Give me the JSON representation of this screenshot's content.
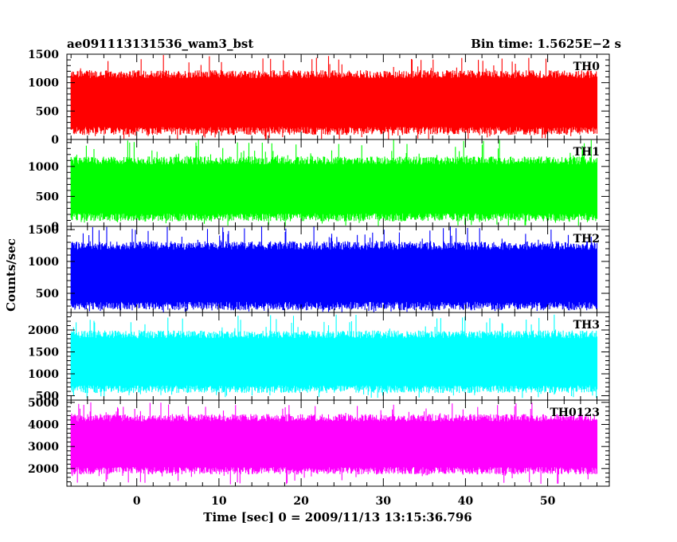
{
  "header": {
    "title": "ae091113131536_wam3_bst",
    "bin_time": "Bin time: 1.5625E−2 s"
  },
  "chart_data": {
    "type": "line",
    "xlabel": "Time [sec] 0 = 2009/11/13 13:15:36.796",
    "ylabel": "Counts/sec",
    "xlim": [
      -8.5,
      57.5
    ],
    "data_x_range": [
      -8,
      56
    ],
    "x_ticks": [
      0,
      10,
      20,
      30,
      40,
      50
    ],
    "x_tick_labels": [
      "0",
      "10",
      "20",
      "30",
      "40",
      "50"
    ],
    "grid": false,
    "panels": [
      {
        "label": "TH0",
        "color": "#ff0000",
        "ylim": [
          0,
          1500
        ],
        "y_ticks": [
          0,
          500,
          1000,
          1500
        ],
        "y_tick_labels": [
          "0",
          "500",
          "1000",
          "1500"
        ],
        "typical_low": 150,
        "typical_high": 1150,
        "extremes": [
          0,
          1500
        ]
      },
      {
        "label": "TH1",
        "color": "#00ff00",
        "ylim": [
          0,
          1450
        ],
        "y_ticks": [
          0,
          500,
          1000
        ],
        "y_tick_labels": [
          "0",
          "500",
          "1000"
        ],
        "typical_low": 150,
        "typical_high": 1100,
        "extremes": [
          0,
          1450
        ]
      },
      {
        "label": "TH2",
        "color": "#0000ff",
        "ylim": [
          200,
          1550
        ],
        "y_ticks": [
          500,
          1000,
          1500
        ],
        "y_tick_labels": [
          "500",
          "1000",
          "1500"
        ],
        "typical_low": 300,
        "typical_high": 1250,
        "extremes": [
          200,
          1550
        ]
      },
      {
        "label": "TH3",
        "color": "#00ffff",
        "ylim": [
          400,
          2400
        ],
        "y_ticks": [
          500,
          1000,
          1500,
          2000
        ],
        "y_tick_labels": [
          "500",
          "1000",
          "1500",
          "2000"
        ],
        "typical_low": 650,
        "typical_high": 1900,
        "extremes": [
          450,
          2350
        ]
      },
      {
        "label": "TH0123",
        "color": "#ff00ff",
        "ylim": [
          1200,
          5100
        ],
        "y_ticks": [
          2000,
          3000,
          4000,
          5000
        ],
        "y_tick_labels": [
          "2000",
          "3000",
          "4000",
          "5000"
        ],
        "typical_low": 1900,
        "typical_high": 4300,
        "extremes": [
          1250,
          5000
        ]
      }
    ]
  }
}
